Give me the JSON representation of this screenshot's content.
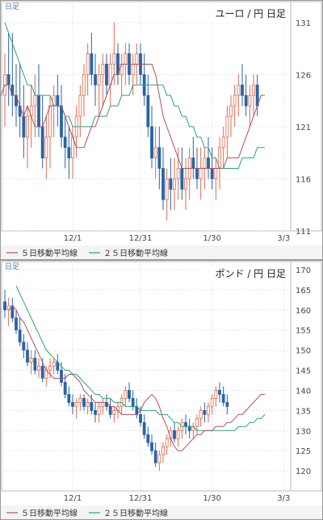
{
  "chart_data": [
    {
      "type": "candlestick",
      "period_label": "日足",
      "title": "ユーロ / 円  日足",
      "ylim": [
        111,
        133
      ],
      "yticks": [
        111,
        116,
        121,
        126,
        131
      ],
      "xticks": [
        {
          "label": "12/1",
          "i": 18
        },
        {
          "label": "12/31",
          "i": 36
        },
        {
          "label": "1/30",
          "i": 55
        },
        {
          "label": "3/3",
          "i": 74
        }
      ],
      "legend": [
        {
          "label": "５日移動平均線",
          "color": "#b05060"
        },
        {
          "label": "２５日移動平均線",
          "color": "#2aa37a"
        }
      ],
      "ma5": [
        124,
        125,
        125,
        124,
        124,
        123,
        122,
        123,
        122,
        121,
        121,
        121,
        122,
        123,
        123,
        123,
        123,
        122,
        121,
        120,
        119,
        119,
        119,
        120,
        121,
        121,
        122,
        123,
        124,
        125,
        126,
        126,
        127,
        127,
        127,
        127,
        127,
        127,
        127,
        127,
        127,
        126,
        124,
        122,
        121,
        120,
        119,
        118,
        117,
        117,
        117,
        117,
        117,
        117,
        117,
        117,
        117,
        117,
        117,
        117,
        118,
        118,
        118,
        118,
        119,
        120,
        121,
        122,
        123,
        124,
        124
      ],
      "ma25": [
        131,
        130,
        129,
        128,
        127,
        126,
        125,
        125,
        124,
        124,
        124,
        124,
        124,
        123,
        123,
        123,
        122,
        122,
        121,
        121,
        121,
        121,
        121,
        121,
        122,
        122,
        122,
        122,
        123,
        123,
        123,
        124,
        124,
        124,
        125,
        125,
        125,
        125,
        125,
        125,
        125,
        125,
        125,
        124,
        124,
        123,
        123,
        122,
        122,
        121,
        121,
        120,
        120,
        119,
        119,
        118,
        118,
        117,
        117,
        117,
        117,
        117,
        117,
        118,
        118,
        118,
        118,
        119,
        119,
        119
      ],
      "candles": [
        [
          124,
          128,
          121,
          126
        ],
        [
          126,
          130,
          123,
          125
        ],
        [
          125,
          130,
          122,
          124
        ],
        [
          124,
          127,
          121,
          123
        ],
        [
          123,
          127,
          120,
          122
        ],
        [
          122,
          125,
          118,
          120
        ],
        [
          120,
          123,
          117,
          122
        ],
        [
          122,
          125,
          119,
          123
        ],
        [
          123,
          126,
          120,
          124
        ],
        [
          124,
          127,
          120,
          121
        ],
        [
          121,
          124,
          117,
          118
        ],
        [
          118,
          122,
          116,
          120
        ],
        [
          120,
          124,
          117,
          123
        ],
        [
          123,
          125,
          120,
          124
        ],
        [
          124,
          126,
          121,
          123
        ],
        [
          123,
          125,
          119,
          120
        ],
        [
          120,
          122,
          117,
          119
        ],
        [
          119,
          121,
          116,
          118
        ],
        [
          118,
          121,
          116,
          120
        ],
        [
          120,
          123,
          118,
          122
        ],
        [
          122,
          125,
          120,
          124
        ],
        [
          124,
          127,
          122,
          126
        ],
        [
          126,
          129,
          124,
          128
        ],
        [
          128,
          130,
          125,
          126
        ],
        [
          126,
          128,
          123,
          125
        ],
        [
          125,
          127,
          122,
          126
        ],
        [
          126,
          128,
          123,
          127
        ],
        [
          127,
          128,
          124,
          125
        ],
        [
          125,
          128,
          123,
          127
        ],
        [
          127,
          131,
          125,
          128
        ],
        [
          128,
          129,
          125,
          126
        ],
        [
          126,
          128,
          124,
          127
        ],
        [
          127,
          129,
          125,
          128
        ],
        [
          128,
          129,
          125,
          126
        ],
        [
          126,
          128,
          124,
          127
        ],
        [
          127,
          129,
          125,
          128
        ],
        [
          128,
          129,
          125,
          126
        ],
        [
          126,
          128,
          123,
          124
        ],
        [
          124,
          126,
          120,
          121
        ],
        [
          121,
          123,
          117,
          118
        ],
        [
          118,
          121,
          116,
          119
        ],
        [
          119,
          121,
          115,
          117
        ],
        [
          117,
          119,
          113,
          114
        ],
        [
          114,
          117,
          112,
          116
        ],
        [
          116,
          118,
          113,
          115
        ],
        [
          115,
          118,
          113,
          116
        ],
        [
          116,
          119,
          114,
          117
        ],
        [
          117,
          119,
          114,
          115
        ],
        [
          115,
          118,
          113,
          116
        ],
        [
          116,
          119,
          114,
          118
        ],
        [
          118,
          120,
          116,
          117
        ],
        [
          117,
          119,
          115,
          116
        ],
        [
          116,
          119,
          114,
          117
        ],
        [
          117,
          119,
          115,
          118
        ],
        [
          118,
          120,
          116,
          117
        ],
        [
          117,
          119,
          115,
          116
        ],
        [
          116,
          118,
          114,
          117
        ],
        [
          117,
          120,
          115,
          119
        ],
        [
          119,
          121,
          117,
          120
        ],
        [
          120,
          123,
          118,
          122
        ],
        [
          122,
          124,
          120,
          123
        ],
        [
          123,
          125,
          121,
          124
        ],
        [
          124,
          126,
          122,
          125
        ],
        [
          125,
          127,
          123,
          124
        ],
        [
          124,
          126,
          122,
          123
        ],
        [
          123,
          125,
          121,
          124
        ],
        [
          124,
          126,
          122,
          125
        ],
        [
          125,
          126,
          122,
          123
        ]
      ]
    },
    {
      "type": "candlestick",
      "period_label": "日足",
      "title": "ポンド / 円  日足",
      "ylim": [
        115,
        172
      ],
      "yticks": [
        120,
        125,
        130,
        135,
        140,
        145,
        150,
        155,
        160,
        165,
        170
      ],
      "xticks": [
        {
          "label": "12/1",
          "i": 18
        },
        {
          "label": "12/31",
          "i": 36
        },
        {
          "label": "1/30",
          "i": 55
        },
        {
          "label": "3/3",
          "i": 74
        }
      ],
      "legend": [
        {
          "label": "５日移動平均線",
          "color": "#b05060"
        },
        {
          "label": "２５日移動平均線",
          "color": "#2aa37a"
        }
      ],
      "ma5": [
        160,
        161,
        160,
        158,
        157,
        155,
        153,
        151,
        149,
        147,
        145,
        144,
        143,
        143,
        143,
        143,
        144,
        144,
        143,
        142,
        140,
        139,
        138,
        137,
        137,
        137,
        137,
        136,
        136,
        135,
        134,
        134,
        134,
        134,
        134,
        135,
        137,
        138,
        139,
        138,
        136,
        133,
        131,
        128,
        126,
        125,
        125,
        126,
        127,
        128,
        129,
        129,
        130,
        130,
        130,
        131,
        131,
        131,
        132,
        132,
        133,
        134,
        134,
        135,
        136,
        137,
        138,
        139,
        139
      ],
      "ma25": [
        166,
        164,
        162,
        160,
        158,
        156,
        154,
        152,
        150,
        149,
        148,
        147,
        146,
        145,
        145,
        144,
        144,
        143,
        142,
        141,
        140,
        139,
        139,
        138,
        138,
        138,
        137,
        137,
        137,
        136,
        136,
        136,
        136,
        135,
        135,
        135,
        135,
        135,
        134,
        134,
        134,
        133,
        132,
        132,
        131,
        131,
        131,
        131,
        130,
        130,
        130,
        130,
        130,
        130,
        130,
        130,
        130,
        130,
        130,
        131,
        131,
        131,
        132,
        132,
        133,
        133,
        134
      ],
      "candles": [
        [
          162,
          165,
          158,
          160
        ],
        [
          160,
          163,
          156,
          161
        ],
        [
          161,
          163,
          157,
          158
        ],
        [
          158,
          160,
          154,
          155
        ],
        [
          155,
          158,
          151,
          152
        ],
        [
          152,
          154,
          148,
          150
        ],
        [
          150,
          152,
          146,
          147
        ],
        [
          147,
          150,
          144,
          148
        ],
        [
          148,
          150,
          144,
          145
        ],
        [
          145,
          148,
          143,
          146
        ],
        [
          146,
          148,
          142,
          143
        ],
        [
          143,
          146,
          141,
          145
        ],
        [
          145,
          148,
          143,
          146
        ],
        [
          146,
          148,
          144,
          147
        ],
        [
          147,
          149,
          144,
          145
        ],
        [
          145,
          147,
          141,
          142
        ],
        [
          142,
          144,
          138,
          139
        ],
        [
          139,
          141,
          136,
          137
        ],
        [
          137,
          139,
          134,
          136
        ],
        [
          136,
          138,
          133,
          137
        ],
        [
          137,
          139,
          135,
          138
        ],
        [
          138,
          139,
          135,
          136
        ],
        [
          136,
          138,
          134,
          137
        ],
        [
          137,
          139,
          134,
          135
        ],
        [
          135,
          137,
          132,
          134
        ],
        [
          134,
          137,
          132,
          136
        ],
        [
          136,
          138,
          134,
          137
        ],
        [
          137,
          139,
          135,
          136
        ],
        [
          136,
          138,
          133,
          134
        ],
        [
          134,
          136,
          132,
          135
        ],
        [
          135,
          137,
          133,
          136
        ],
        [
          136,
          139,
          134,
          138
        ],
        [
          138,
          141,
          136,
          140
        ],
        [
          140,
          142,
          137,
          138
        ],
        [
          138,
          140,
          135,
          136
        ],
        [
          136,
          138,
          133,
          134
        ],
        [
          134,
          136,
          131,
          132
        ],
        [
          132,
          134,
          128,
          129
        ],
        [
          129,
          131,
          126,
          127
        ],
        [
          127,
          129,
          124,
          125
        ],
        [
          125,
          127,
          121,
          122
        ],
        [
          122,
          125,
          120,
          124
        ],
        [
          124,
          127,
          122,
          126
        ],
        [
          126,
          129,
          124,
          128
        ],
        [
          128,
          131,
          126,
          130
        ],
        [
          130,
          132,
          127,
          128
        ],
        [
          128,
          131,
          126,
          130
        ],
        [
          130,
          133,
          128,
          132
        ],
        [
          132,
          134,
          129,
          131
        ],
        [
          131,
          133,
          128,
          130
        ],
        [
          130,
          132,
          128,
          131
        ],
        [
          131,
          134,
          129,
          133
        ],
        [
          133,
          136,
          131,
          135
        ],
        [
          135,
          137,
          132,
          134
        ],
        [
          134,
          137,
          132,
          136
        ],
        [
          136,
          139,
          134,
          138
        ],
        [
          138,
          141,
          136,
          140
        ],
        [
          140,
          142,
          137,
          139
        ],
        [
          139,
          141,
          136,
          137
        ],
        [
          137,
          139,
          134,
          136
        ]
      ]
    }
  ]
}
